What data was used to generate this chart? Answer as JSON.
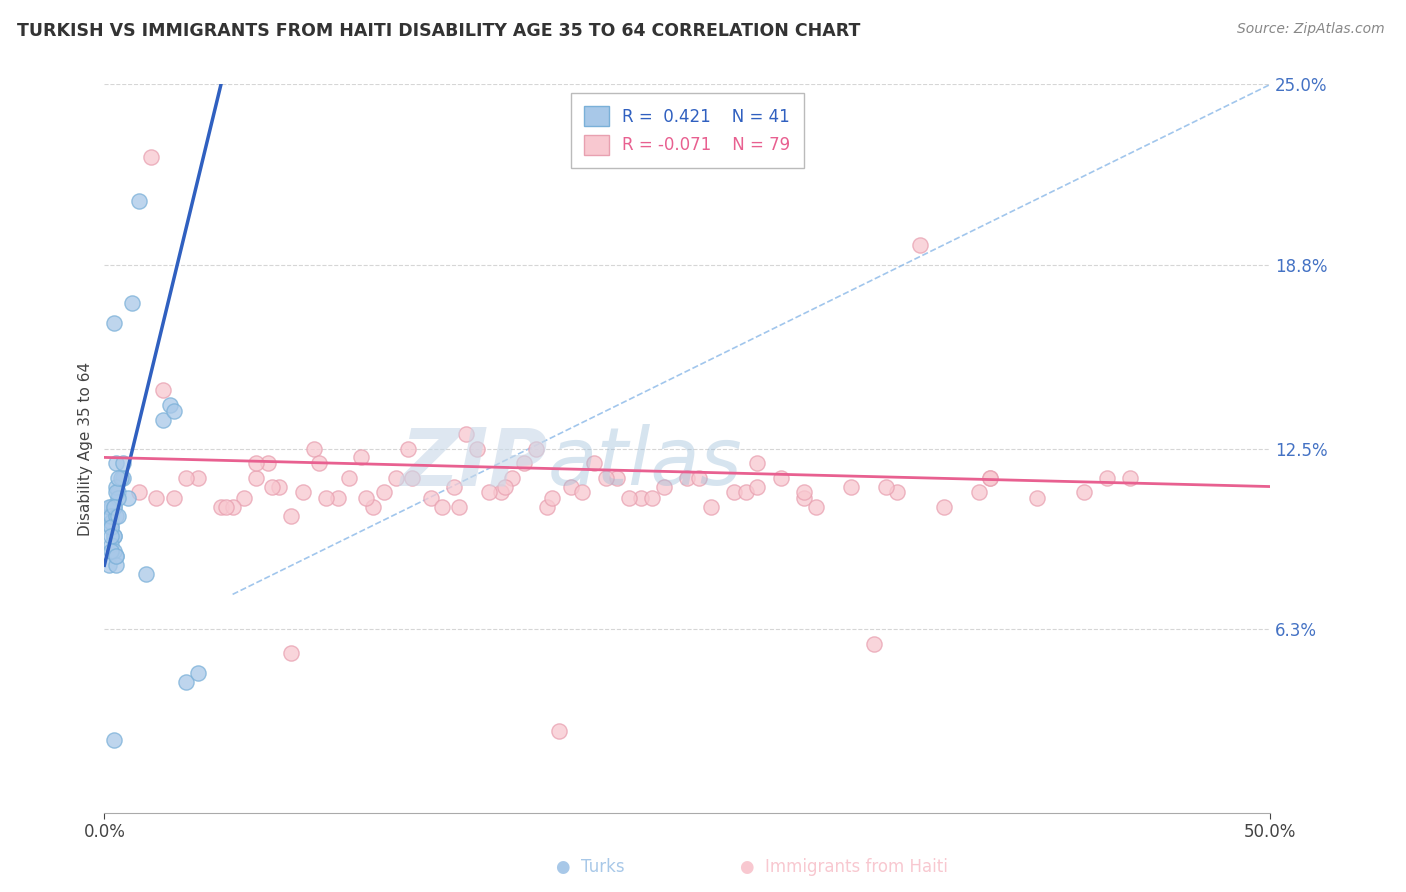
{
  "title": "TURKISH VS IMMIGRANTS FROM HAITI DISABILITY AGE 35 TO 64 CORRELATION CHART",
  "source": "Source: ZipAtlas.com",
  "ylabel": "Disability Age 35 to 64",
  "xmin": 0.0,
  "xmax": 50.0,
  "ymin": 0.0,
  "ymax": 25.0,
  "ytick_vals": [
    6.3,
    12.5,
    18.8,
    25.0
  ],
  "ytick_labels": [
    "6.3%",
    "12.5%",
    "18.8%",
    "25.0%"
  ],
  "xtick_vals": [
    0.0,
    50.0
  ],
  "xtick_labels": [
    "0.0%",
    "50.0%"
  ],
  "color_turks": "#a8c8e8",
  "color_turks_edge": "#7ab0d8",
  "color_haiti": "#f8c8d0",
  "color_haiti_edge": "#e8a0b0",
  "color_turks_line": "#3060c0",
  "color_haiti_line": "#e86090",
  "color_ref_line": "#8ab8e8",
  "watermark_color": "#d8e8f0",
  "turks_x": [
    1.5,
    0.3,
    0.5,
    0.4,
    0.6,
    0.8,
    1.0,
    0.2,
    0.3,
    0.4,
    0.5,
    0.6,
    0.7,
    0.8,
    0.3,
    0.4,
    0.5,
    0.2,
    0.3,
    0.6,
    1.2,
    0.4,
    0.5,
    0.3,
    0.4,
    2.5,
    2.8,
    3.0,
    0.2,
    0.3,
    0.5,
    0.4,
    0.3,
    0.6,
    0.5,
    3.5,
    4.0,
    0.4,
    1.8,
    0.3,
    0.5
  ],
  "turks_y": [
    21.0,
    10.5,
    12.0,
    9.5,
    11.0,
    11.5,
    10.8,
    10.2,
    9.8,
    10.5,
    11.2,
    10.8,
    11.5,
    12.0,
    10.0,
    9.5,
    11.0,
    10.5,
    10.2,
    11.5,
    17.5,
    16.8,
    10.2,
    9.8,
    10.5,
    13.5,
    14.0,
    13.8,
    8.5,
    9.2,
    8.8,
    9.0,
    9.5,
    10.2,
    8.5,
    4.5,
    4.8,
    2.5,
    8.2,
    9.0,
    8.8
  ],
  "haiti_x": [
    2.0,
    2.5,
    5.0,
    6.0,
    6.5,
    7.0,
    8.0,
    8.5,
    9.0,
    10.0,
    10.5,
    11.0,
    11.5,
    12.0,
    13.0,
    14.0,
    15.0,
    15.5,
    16.0,
    17.0,
    17.5,
    18.0,
    19.0,
    20.0,
    21.0,
    22.0,
    23.0,
    24.0,
    25.0,
    26.0,
    27.0,
    28.0,
    29.0,
    30.0,
    32.0,
    34.0,
    36.0,
    38.0,
    40.0,
    42.0,
    44.0,
    1.5,
    3.0,
    4.0,
    5.5,
    6.5,
    7.5,
    9.5,
    12.5,
    14.5,
    16.5,
    18.5,
    20.5,
    22.5,
    25.5,
    27.5,
    30.5,
    33.5,
    37.5,
    43.0,
    2.2,
    3.5,
    5.2,
    7.2,
    9.2,
    11.2,
    13.2,
    15.2,
    17.2,
    19.2,
    21.5,
    23.5,
    28.0,
    33.0,
    38.0,
    8.0,
    19.5,
    30.0,
    35.0
  ],
  "haiti_y": [
    22.5,
    14.5,
    10.5,
    10.8,
    11.5,
    12.0,
    10.2,
    11.0,
    12.5,
    10.8,
    11.5,
    12.2,
    10.5,
    11.0,
    12.5,
    10.8,
    11.2,
    13.0,
    12.5,
    11.0,
    11.5,
    12.0,
    10.5,
    11.2,
    12.0,
    11.5,
    10.8,
    11.2,
    11.5,
    10.5,
    11.0,
    12.0,
    11.5,
    10.8,
    11.2,
    11.0,
    10.5,
    11.5,
    10.8,
    11.0,
    11.5,
    11.0,
    10.8,
    11.5,
    10.5,
    12.0,
    11.2,
    10.8,
    11.5,
    10.5,
    11.0,
    12.5,
    11.0,
    10.8,
    11.5,
    11.0,
    10.5,
    11.2,
    11.0,
    11.5,
    10.8,
    11.5,
    10.5,
    11.2,
    12.0,
    10.8,
    11.5,
    10.5,
    11.2,
    10.8,
    11.5,
    10.8,
    11.2,
    5.8,
    11.5,
    5.5,
    2.8,
    11.0,
    19.5
  ],
  "blue_line_x0": 0.0,
  "blue_line_y0": 8.5,
  "blue_line_x1": 5.0,
  "blue_line_y1": 25.0,
  "pink_line_x0": 0.0,
  "pink_line_y0": 12.2,
  "pink_line_x1": 50.0,
  "pink_line_y1": 11.2,
  "ref_line_x0": 5.5,
  "ref_line_y0": 7.5,
  "ref_line_x1": 50.0,
  "ref_line_y1": 25.0
}
